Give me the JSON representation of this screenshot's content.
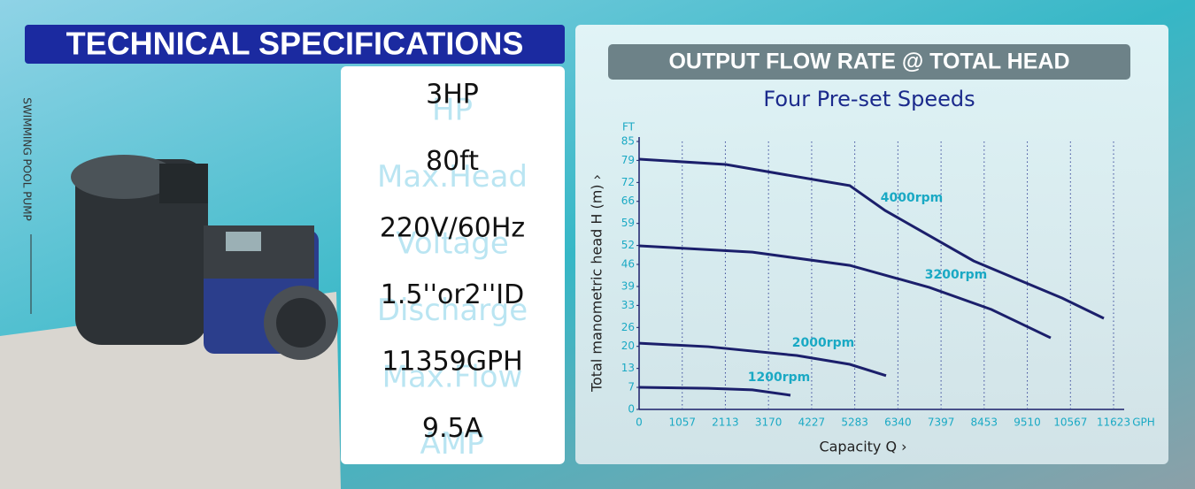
{
  "header": {
    "title": "TECHNICAL SPECIFICATIONS",
    "side_label": "SWIMMING POOL PUMP"
  },
  "specs": [
    {
      "value": "3HP",
      "label": "HP"
    },
    {
      "value": "80ft",
      "label": "Max.Head"
    },
    {
      "value": "220V/60Hz",
      "label": "Voltage"
    },
    {
      "value": "1.5''or2''ID",
      "label": "Discharge"
    },
    {
      "value": "11359GPH",
      "label": "Max.Flow"
    },
    {
      "value": "9.5A",
      "label": "AMP"
    }
  ],
  "chart_data": {
    "type": "line",
    "title": "OUTPUT FLOW RATE @ TOTAL HEAD",
    "subtitle": "Four Pre-set Speeds",
    "y_label": "Total manometric head H (m) ›",
    "x_label": "Capacity Q ›",
    "y_unit": "FT",
    "x_unit": "GPH",
    "xlim": [
      0,
      11623
    ],
    "xticks": [
      0,
      1057,
      2113,
      3170,
      4227,
      5283,
      6340,
      7397,
      8453,
      9510,
      10567,
      11623
    ],
    "ylim": [
      0,
      85
    ],
    "yticks": [
      0,
      7,
      13,
      20,
      26,
      33,
      39,
      46,
      52,
      59,
      66,
      72,
      79,
      85
    ],
    "grid": true,
    "label_color": "#1aa9c4",
    "series": [
      {
        "name": "4000rpm",
        "color": "#1b1f6b",
        "x": [
          0,
          2125,
          4510,
          5161,
          6028,
          8197,
          10365,
          11385
        ],
        "values": [
          79.4,
          77.7,
          72.4,
          71,
          63.1,
          47.1,
          35.3,
          28.9
        ]
      },
      {
        "name": "3200rpm",
        "color": "#1b1f6b",
        "x": [
          0,
          2776,
          5161,
          7113,
          8631,
          10083
        ],
        "values": [
          51.9,
          49.9,
          45.7,
          38.7,
          31.7,
          22.7
        ]
      },
      {
        "name": "2000rpm",
        "color": "#1b1f6b",
        "x": [
          0,
          1691,
          3860,
          5161,
          6050
        ],
        "values": [
          21,
          19.9,
          17.1,
          14.3,
          10.7
        ]
      },
      {
        "name": "1200rpm",
        "color": "#1b1f6b",
        "x": [
          0,
          1691,
          2776,
          3708
        ],
        "values": [
          7,
          6.7,
          6.2,
          4.5
        ]
      }
    ]
  }
}
